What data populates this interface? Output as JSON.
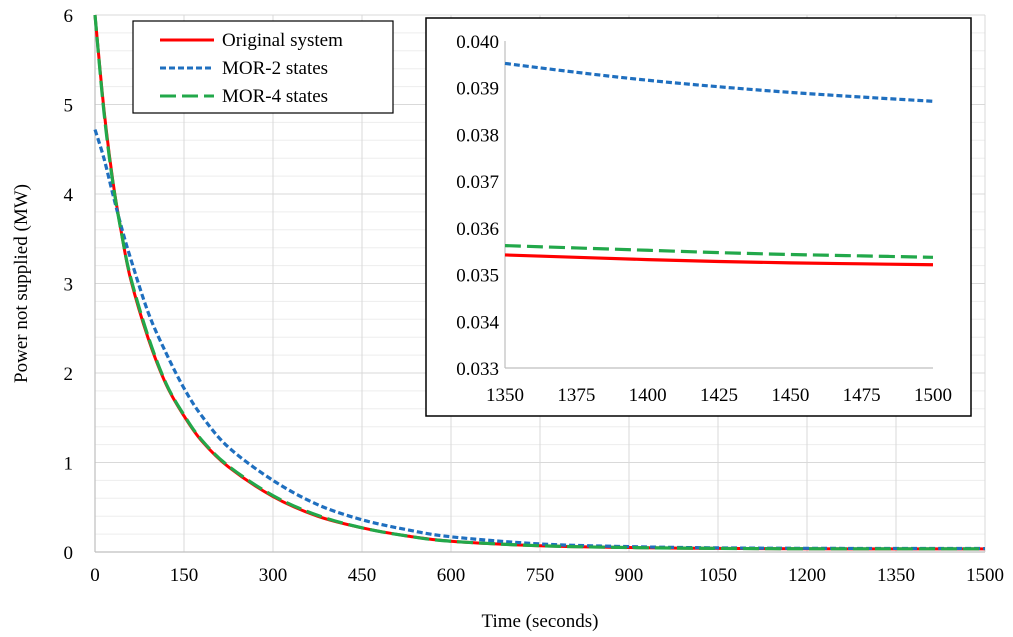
{
  "colors": {
    "original": "#ff0000",
    "mor2": "#1f6fbf",
    "mor4": "#22a84a",
    "grid": "#d9d9d9",
    "axis": "#bfbfbf"
  },
  "chart_data": [
    {
      "type": "line",
      "xlabel": "Time (seconds)",
      "ylabel": "Power not supplied (MW)",
      "xlim": [
        0,
        1500
      ],
      "ylim": [
        0,
        6
      ],
      "xticks": [
        0,
        150,
        300,
        450,
        600,
        750,
        900,
        1050,
        1200,
        1350,
        1500
      ],
      "yticks": [
        0,
        1,
        2,
        3,
        4,
        5,
        6
      ],
      "grid": true,
      "legend": {
        "position": "top-left",
        "entries": [
          "Original system",
          "MOR-2 states",
          "MOR-4 states"
        ]
      },
      "x": [
        0,
        15,
        30,
        45,
        60,
        90,
        120,
        150,
        180,
        225,
        300,
        375,
        450,
        525,
        600,
        750,
        900,
        1050,
        1200,
        1350,
        1500
      ],
      "series": [
        {
          "name": "Original system",
          "style": "solid",
          "values": [
            6.0,
            4.95,
            4.15,
            3.55,
            3.05,
            2.38,
            1.87,
            1.52,
            1.24,
            0.95,
            0.62,
            0.4,
            0.27,
            0.18,
            0.12,
            0.07,
            0.05,
            0.04,
            0.036,
            0.0354,
            0.0352
          ]
        },
        {
          "name": "MOR-2 states",
          "style": "dotted",
          "values": [
            4.72,
            4.4,
            4.0,
            3.62,
            3.28,
            2.67,
            2.22,
            1.83,
            1.52,
            1.17,
            0.8,
            0.53,
            0.36,
            0.25,
            0.17,
            0.09,
            0.06,
            0.046,
            0.041,
            0.0395,
            0.0387
          ]
        },
        {
          "name": "MOR-4 states",
          "style": "dashed",
          "values": [
            6.0,
            4.92,
            4.13,
            3.55,
            3.07,
            2.4,
            1.88,
            1.53,
            1.25,
            0.96,
            0.63,
            0.41,
            0.27,
            0.18,
            0.12,
            0.07,
            0.05,
            0.04,
            0.036,
            0.0356,
            0.0354
          ]
        }
      ]
    },
    {
      "type": "line",
      "role": "inset",
      "xlim": [
        1350,
        1500
      ],
      "ylim": [
        0.033,
        0.04
      ],
      "xticks": [
        1350,
        1375,
        1400,
        1425,
        1450,
        1475,
        1500
      ],
      "yticks": [
        "0.033",
        "0.034",
        "0.035",
        "0.036",
        "0.037",
        "0.038",
        "0.039",
        "0.040"
      ],
      "grid": false,
      "x": [
        1350,
        1375,
        1400,
        1425,
        1450,
        1475,
        1500
      ],
      "series": [
        {
          "name": "Original system",
          "style": "solid",
          "values": [
            0.03542,
            0.03537,
            0.03532,
            0.03528,
            0.03525,
            0.03523,
            0.03521
          ]
        },
        {
          "name": "MOR-2 states",
          "style": "dotted",
          "values": [
            0.03952,
            0.03933,
            0.03916,
            0.03902,
            0.0389,
            0.0388,
            0.03871
          ]
        },
        {
          "name": "MOR-4 states",
          "style": "dashed",
          "values": [
            0.03562,
            0.03557,
            0.03552,
            0.03547,
            0.03543,
            0.0354,
            0.03537
          ]
        }
      ]
    }
  ]
}
